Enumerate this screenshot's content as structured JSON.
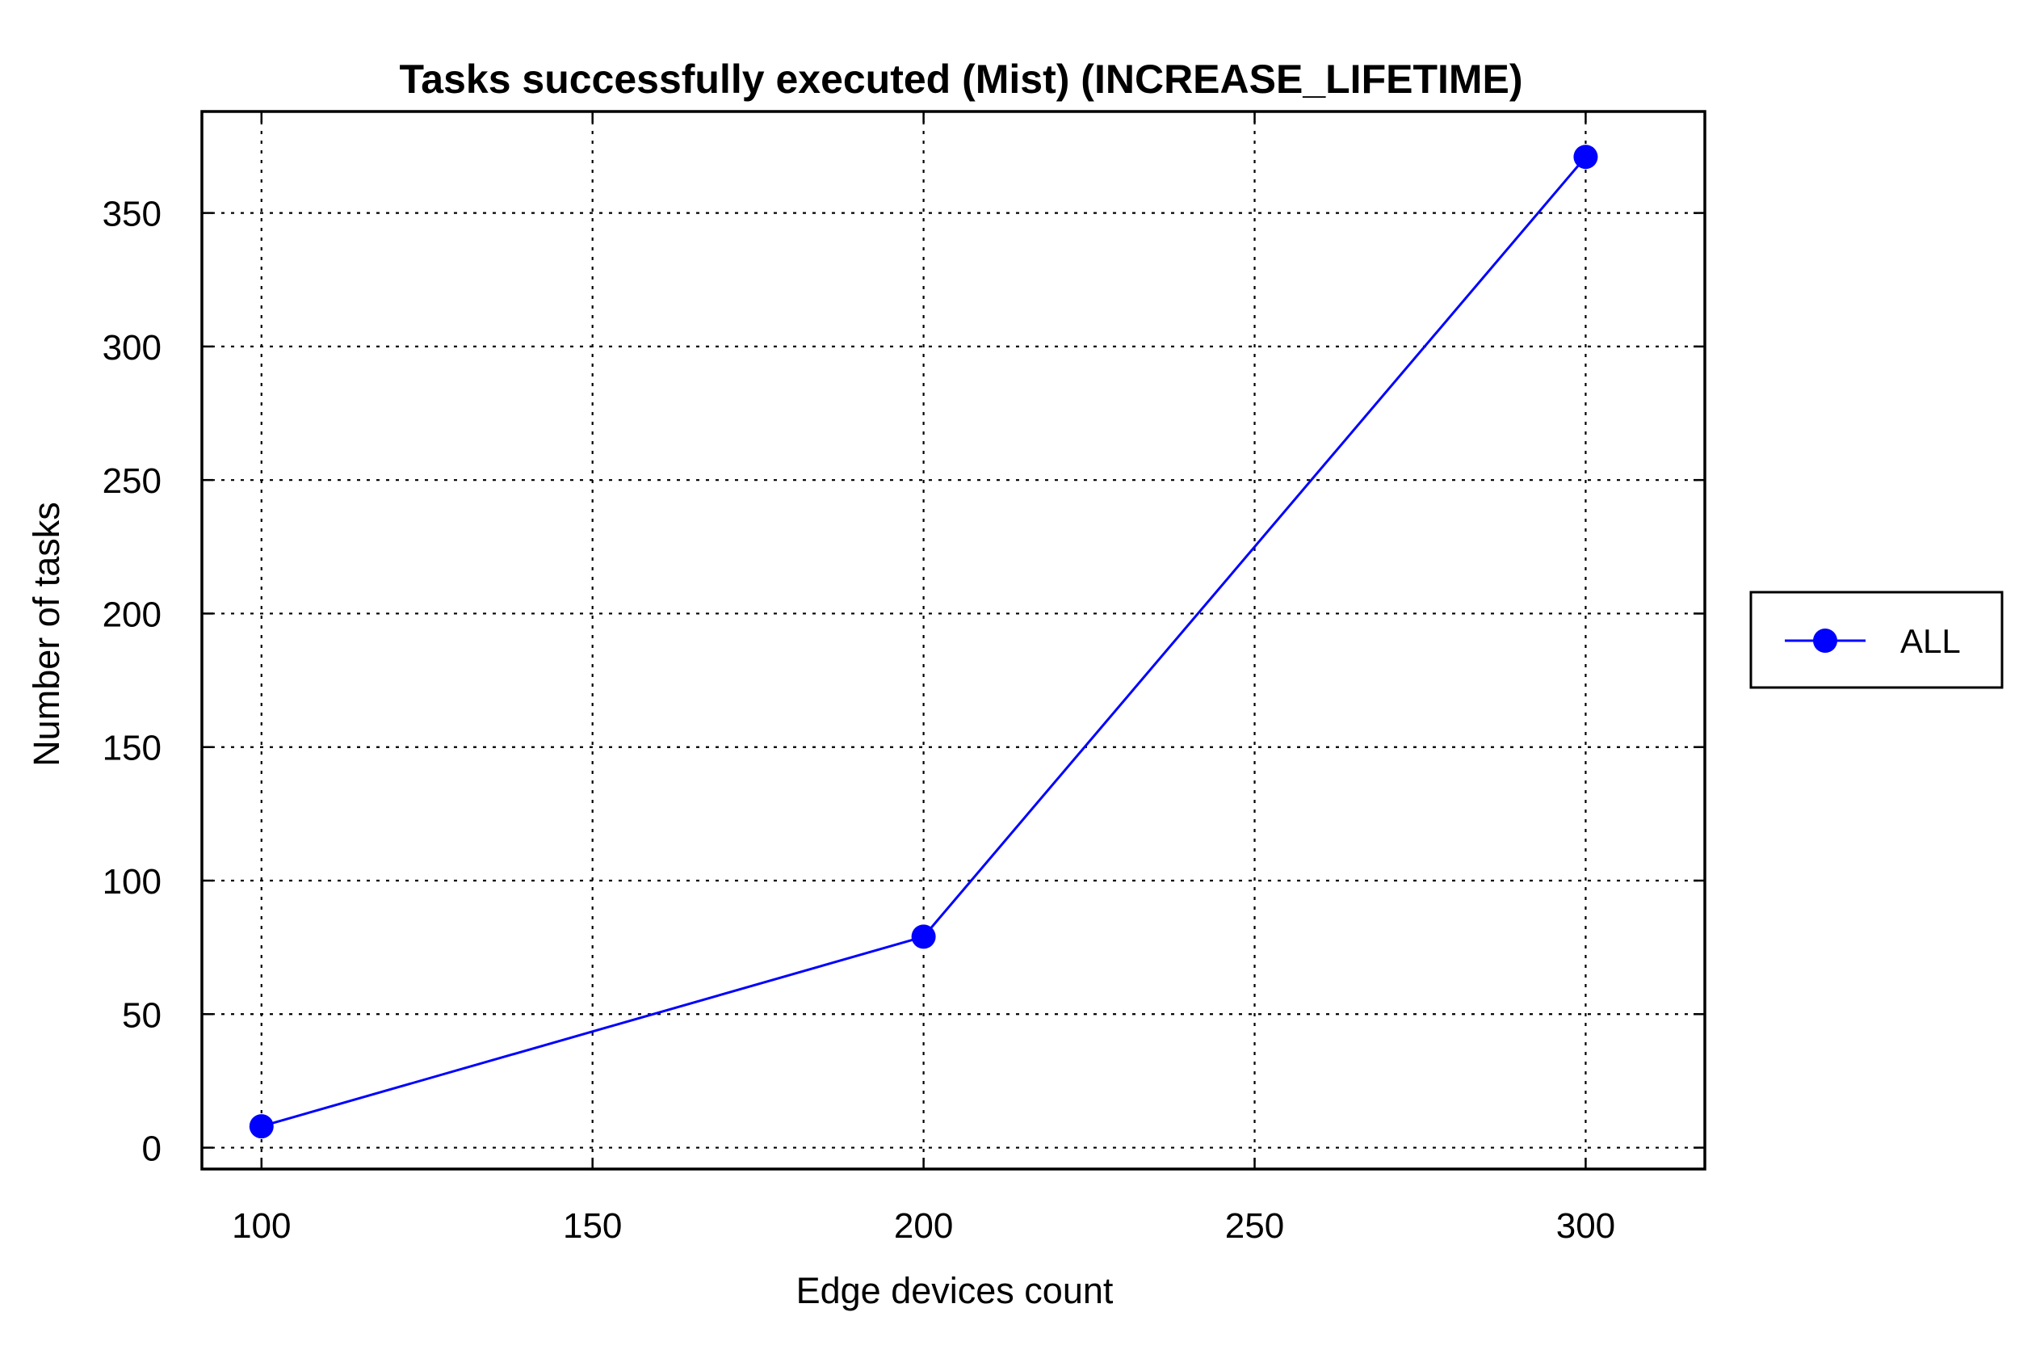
{
  "chart_data": {
    "type": "line",
    "title": "Tasks successfully executed (Mist) (INCREASE_LIFETIME)",
    "xlabel": "Edge devices count",
    "ylabel": "Number of tasks",
    "xlim": [
      91,
      318
    ],
    "ylim": [
      -8,
      388
    ],
    "xticks": [
      100,
      150,
      200,
      250,
      300
    ],
    "xtick_labels": [
      "100",
      "150",
      "200",
      "250",
      "300"
    ],
    "yticks": [
      0,
      50,
      100,
      150,
      200,
      250,
      300,
      350
    ],
    "ytick_labels": [
      "0",
      "50",
      "100",
      "150",
      "200",
      "250",
      "300",
      "350"
    ],
    "grid": true,
    "legend_position": "outside-right",
    "series": [
      {
        "name": "ALL",
        "color": "#0000ff",
        "marker": "circle",
        "x": [
          100,
          200,
          300
        ],
        "y": [
          8,
          79,
          371
        ]
      }
    ]
  }
}
